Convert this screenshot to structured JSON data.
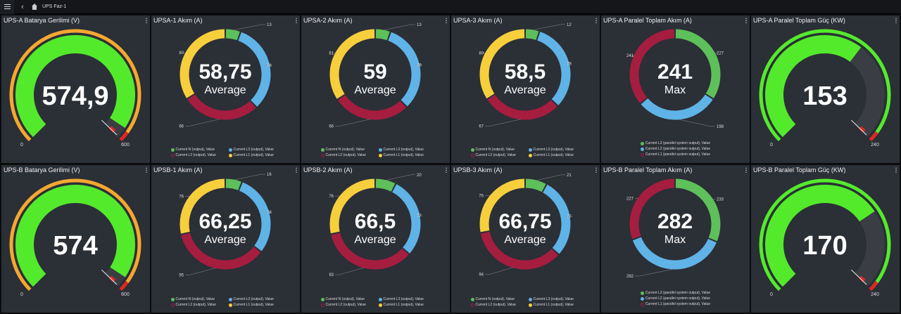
{
  "topbar": {
    "breadcrumb": "UPS Faz-1"
  },
  "colors": {
    "green": "#5ec05a",
    "blue": "#5fb3e6",
    "red": "#a51d3f",
    "yellow": "#f7cf3d",
    "gauge_green": "#54ea2c",
    "gauge_orange": "#f5a730",
    "gauge_red": "#e02820",
    "gauge_track": "#3a3e44"
  },
  "rows": [
    [
      {
        "type": "gauge",
        "title": "UPS-A Batarya Gerilimi (V)",
        "value": "574,9",
        "num": 574.9,
        "min": 0,
        "max": 600,
        "min_label": "0",
        "max_label": "600",
        "threshold": "orange"
      },
      {
        "type": "donut",
        "title": "UPSA-1 Akım (A)",
        "center_value": "58,75",
        "center_label": "Average",
        "slices": [
          {
            "value": 13,
            "label": "13",
            "color": "green"
          },
          {
            "value": 76,
            "label": "76",
            "color": "blue"
          },
          {
            "value": 66,
            "label": "66",
            "color": "red"
          },
          {
            "value": 80,
            "label": "80",
            "color": "yellow"
          }
        ],
        "legend": [
          {
            "label": "Current N (output), Value",
            "color": "green"
          },
          {
            "label": "Current L3 (output), Value",
            "color": "blue"
          },
          {
            "label": "Current L2 (output), Value",
            "color": "red"
          },
          {
            "label": "Current L1 (output), Value",
            "color": "yellow"
          }
        ]
      },
      {
        "type": "donut",
        "title": "UPSA-2 Akım (A)",
        "center_value": "59",
        "center_label": "Average",
        "slices": [
          {
            "value": 13,
            "label": "13",
            "color": "green"
          },
          {
            "value": 76,
            "label": "76",
            "color": "blue"
          },
          {
            "value": 66,
            "label": "66",
            "color": "red"
          },
          {
            "value": 81,
            "label": "81",
            "color": "yellow"
          }
        ],
        "legend": [
          {
            "label": "Current N (output), Value",
            "color": "green"
          },
          {
            "label": "Current L3 (output), Value",
            "color": "blue"
          },
          {
            "label": "Current L2 (output), Value",
            "color": "red"
          },
          {
            "label": "Current L1 (output), Value",
            "color": "yellow"
          }
        ]
      },
      {
        "type": "donut",
        "title": "UPSA-3 Akım (A)",
        "center_value": "58,5",
        "center_label": "Average",
        "slices": [
          {
            "value": 12,
            "label": "12",
            "color": "green"
          },
          {
            "value": 75,
            "label": "75",
            "color": "blue"
          },
          {
            "value": 67,
            "label": "67",
            "color": "red"
          },
          {
            "value": 80,
            "label": "80",
            "color": "yellow"
          }
        ],
        "legend": [
          {
            "label": "Current N (output), Value",
            "color": "green"
          },
          {
            "label": "Current L3 (output), Value",
            "color": "blue"
          },
          {
            "label": "Current L2 (output), Value",
            "color": "red"
          },
          {
            "label": "Current L1 (output), Value",
            "color": "yellow"
          }
        ]
      },
      {
        "type": "donut",
        "title": "UPS-A Paralel Toplam Akım (A)",
        "center_value": "241",
        "center_label": "Max",
        "slices": [
          {
            "value": 227,
            "label": "227",
            "color": "green"
          },
          {
            "value": 198,
            "label": "198",
            "color": "blue"
          },
          {
            "value": 241,
            "label": "241",
            "color": "red"
          }
        ],
        "legend": [
          {
            "label": "Current L3 (parallel system output), Value",
            "color": "green"
          },
          {
            "label": "Current L2 (parallel system output), Value",
            "color": "blue"
          },
          {
            "label": "Current L1 (parallel system output), Value",
            "color": "red"
          }
        ]
      },
      {
        "type": "gauge",
        "title": "UPS-A Paralel Toplam Güç (KW)",
        "value": "153",
        "num": 153,
        "min": 0,
        "max": 240,
        "min_label": "0",
        "max_label": "240",
        "threshold": "green"
      }
    ],
    [
      {
        "type": "gauge",
        "title": "UPS-B Batarya Gerilimi (V)",
        "value": "574",
        "num": 574,
        "min": 0,
        "max": 600,
        "min_label": "0",
        "max_label": "600",
        "threshold": "orange"
      },
      {
        "type": "donut",
        "title": "UPSB-1 Akım (A)",
        "center_value": "66,25",
        "center_label": "Average",
        "slices": [
          {
            "value": 16,
            "label": "16",
            "color": "green"
          },
          {
            "value": 78,
            "label": "78",
            "color": "blue"
          },
          {
            "value": 95,
            "label": "95",
            "color": "red"
          },
          {
            "value": 76,
            "label": "76",
            "color": "yellow"
          }
        ],
        "legend": [
          {
            "label": "Current N (output), Value",
            "color": "green"
          },
          {
            "label": "Current L3 (output), Value",
            "color": "blue"
          },
          {
            "label": "Current L2 (output), Value",
            "color": "red"
          },
          {
            "label": "Current L1 (output), Value",
            "color": "yellow"
          }
        ]
      },
      {
        "type": "donut",
        "title": "UPSB-2 Akım (A)",
        "center_value": "66,5",
        "center_label": "Average",
        "slices": [
          {
            "value": 20,
            "label": "20",
            "color": "green"
          },
          {
            "value": 77,
            "label": "77",
            "color": "blue"
          },
          {
            "value": 93,
            "label": "93",
            "color": "red"
          },
          {
            "value": 76,
            "label": "76",
            "color": "yellow"
          }
        ],
        "legend": [
          {
            "label": "Current N (output), Value",
            "color": "green"
          },
          {
            "label": "Current L3 (output), Value",
            "color": "blue"
          },
          {
            "label": "Current L2 (output), Value",
            "color": "red"
          },
          {
            "label": "Current L1 (output), Value",
            "color": "yellow"
          }
        ]
      },
      {
        "type": "donut",
        "title": "UPSB-3 Akım (A)",
        "center_value": "66,75",
        "center_label": "Average",
        "slices": [
          {
            "value": 21,
            "label": "21",
            "color": "green"
          },
          {
            "value": 77,
            "label": "77",
            "color": "blue"
          },
          {
            "value": 94,
            "label": "94",
            "color": "red"
          },
          {
            "value": 75,
            "label": "75",
            "color": "yellow"
          }
        ],
        "legend": [
          {
            "label": "Current N (output), Value",
            "color": "green"
          },
          {
            "label": "Current L3 (output), Value",
            "color": "blue"
          },
          {
            "label": "Current L2 (output), Value",
            "color": "red"
          },
          {
            "label": "Current L1 (output), Value",
            "color": "yellow"
          }
        ]
      },
      {
        "type": "donut",
        "title": "UPS-B Paralel Toplam Akım (A)",
        "center_value": "282",
        "center_label": "Max",
        "slices": [
          {
            "value": 233,
            "label": "233",
            "color": "green"
          },
          {
            "value": 282,
            "label": "282",
            "color": "blue"
          },
          {
            "value": 227,
            "label": "227",
            "color": "red"
          }
        ],
        "legend": [
          {
            "label": "Current L3 (parallel system output), Value",
            "color": "green"
          },
          {
            "label": "Current L2 (parallel system output), Value",
            "color": "blue"
          },
          {
            "label": "Current L1 (parallel system output), Value",
            "color": "red"
          }
        ]
      },
      {
        "type": "gauge",
        "title": "UPS-B Paralel Toplam Güç (KW)",
        "value": "170",
        "num": 170,
        "min": 0,
        "max": 240,
        "min_label": "0",
        "max_label": "240",
        "threshold": "green"
      }
    ]
  ]
}
